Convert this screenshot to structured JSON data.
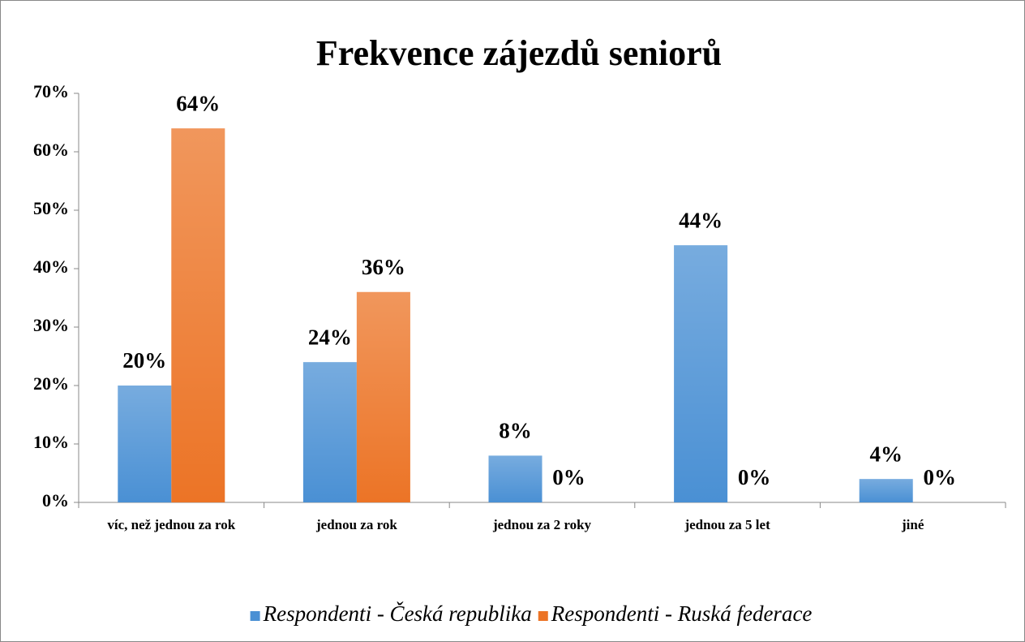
{
  "chart_data": {
    "type": "bar",
    "title": "Frekvence zájezdů seniorů",
    "categories": [
      "víc, než jednou za rok",
      "jednou za rok",
      "jednou za 2 roky",
      "jednou za 5 let",
      "jiné"
    ],
    "series": [
      {
        "name": "Respondenti - Česká republika",
        "color": "#4a90d4",
        "values": [
          20,
          24,
          8,
          44,
          4
        ],
        "value_labels": [
          "20%",
          "24%",
          "8%",
          "44%",
          "4%"
        ]
      },
      {
        "name": "Respondenti - Ruská federace",
        "color": "#ec7426",
        "values": [
          64,
          36,
          0,
          0,
          0
        ],
        "value_labels": [
          "64%",
          "36%",
          "0%",
          "0%",
          "0%"
        ]
      }
    ],
    "ylim": [
      0,
      70
    ],
    "yticks": [
      {
        "value": 0,
        "label": "0%"
      },
      {
        "value": 10,
        "label": "10%"
      },
      {
        "value": 20,
        "label": "20%"
      },
      {
        "value": 30,
        "label": "30%"
      },
      {
        "value": 40,
        "label": "40%"
      },
      {
        "value": 50,
        "label": "50%"
      },
      {
        "value": 60,
        "label": "60%"
      },
      {
        "value": 70,
        "label": "70%"
      }
    ],
    "legend": "bottom"
  }
}
